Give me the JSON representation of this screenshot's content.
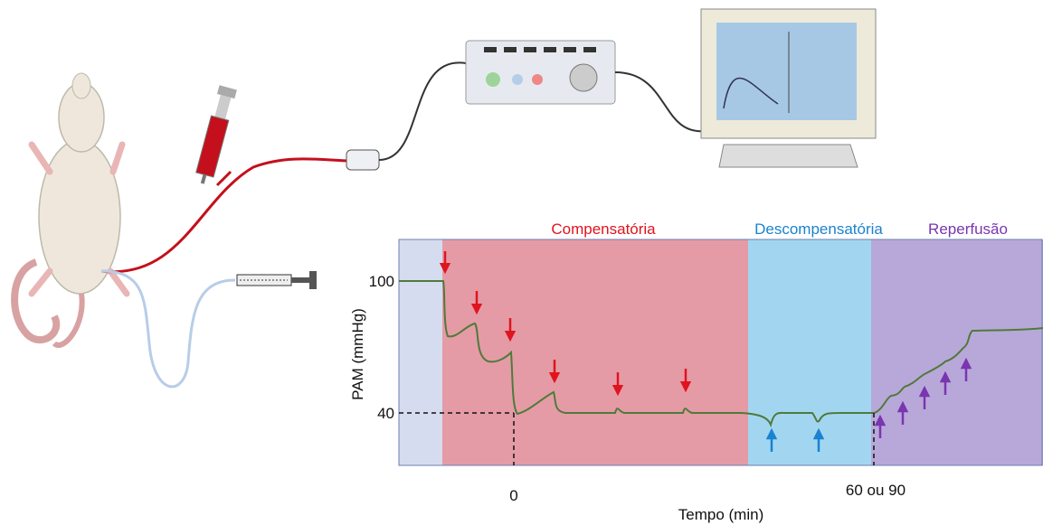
{
  "phases": [
    {
      "label": "Compensatória"
    },
    {
      "label": "Descompensatória"
    },
    {
      "label": "Reperfusão"
    }
  ],
  "y_axis": {
    "label": "PAM (mmHg)",
    "ticks": [
      "100",
      "40"
    ]
  },
  "x_axis": {
    "label": "Tempo (min)",
    "ticks": [
      "0",
      "60 ou 90"
    ]
  }
}
